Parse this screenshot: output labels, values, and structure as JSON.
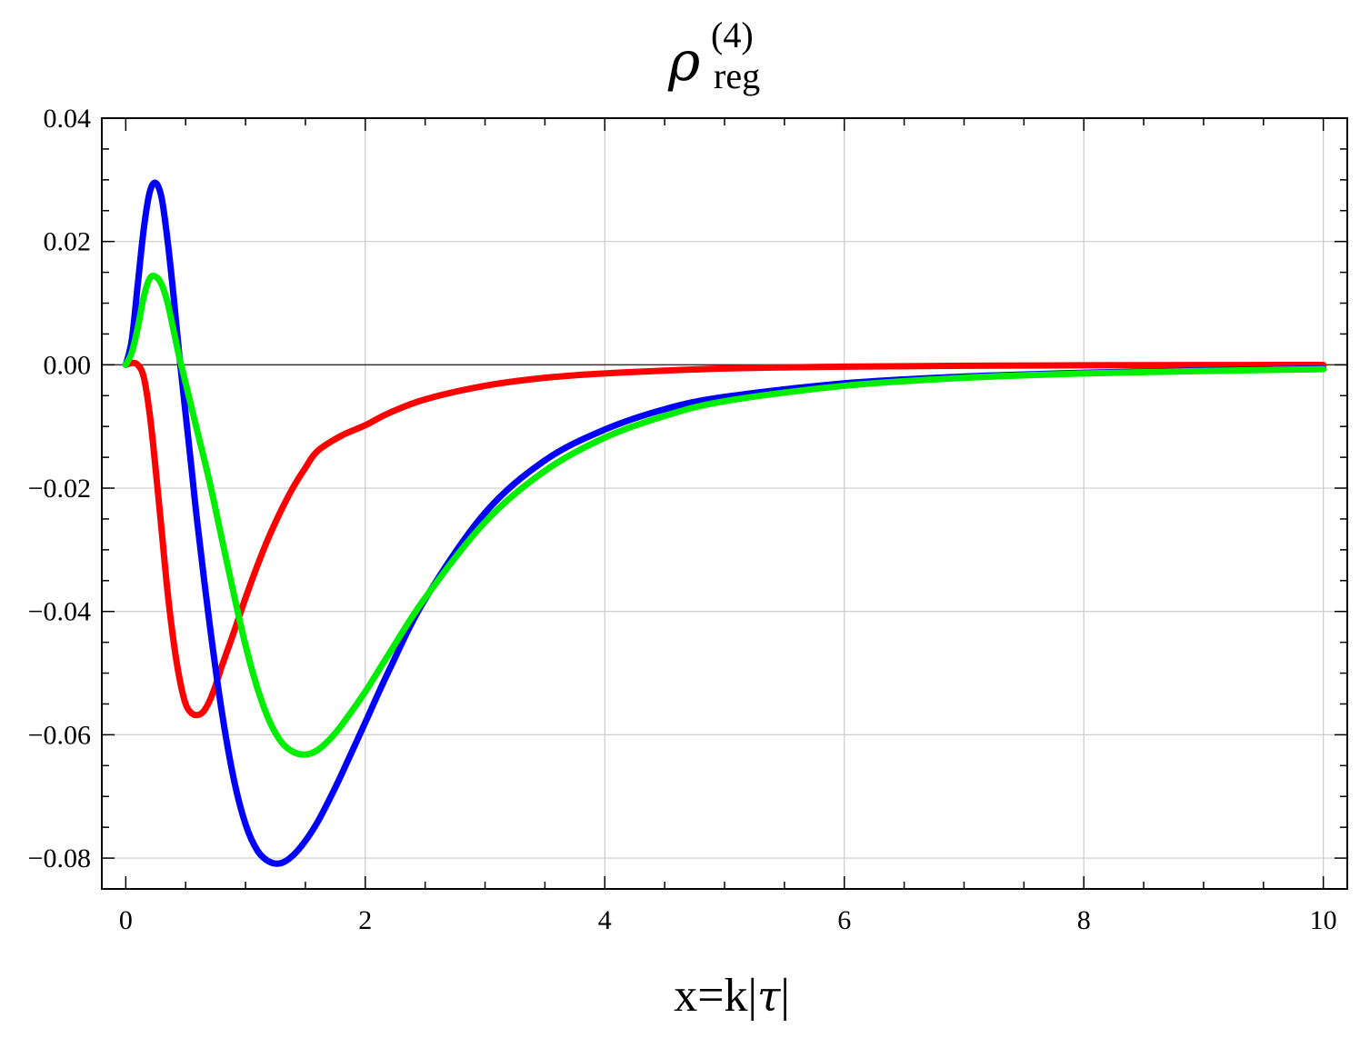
{
  "chart_data": {
    "type": "line",
    "title": {
      "base": "ρ",
      "subscript": "reg",
      "superscript": "(4)"
    },
    "xlabel": {
      "prefix": "x=k|",
      "symbol": "τ",
      "suffix": "|"
    },
    "ylabel": "",
    "xlim": [
      -0.2,
      10.2
    ],
    "ylim": [
      -0.085,
      0.04
    ],
    "x_ticks": [
      0,
      2,
      4,
      6,
      8,
      10
    ],
    "x_tick_labels": [
      "0",
      "2",
      "4",
      "6",
      "8",
      "10"
    ],
    "y_ticks": [
      0.04,
      0.02,
      0.0,
      -0.02,
      -0.04,
      -0.06,
      -0.08
    ],
    "y_tick_labels": [
      "0.04",
      "0.02",
      "0.00",
      "−0.02",
      "−0.04",
      "−0.06",
      "−0.08"
    ],
    "grid": true,
    "series": [
      {
        "color": "#ff0000",
        "x": [
          0,
          0.05,
          0.1,
          0.15,
          0.2,
          0.25,
          0.3,
          0.35,
          0.4,
          0.45,
          0.5,
          0.55,
          0.6,
          0.65,
          0.7,
          0.75,
          0.8,
          0.9,
          1.0,
          1.1,
          1.2,
          1.3,
          1.4,
          1.5,
          1.6,
          1.8,
          2.0,
          2.2,
          2.5,
          3.0,
          3.5,
          4.0,
          5.0,
          6.0,
          7.0,
          8.0,
          9.0,
          10.0
        ],
        "y": [
          0.0,
          0.0003,
          0.0,
          -0.002,
          -0.008,
          -0.017,
          -0.027,
          -0.037,
          -0.045,
          -0.051,
          -0.055,
          -0.0565,
          -0.0568,
          -0.0562,
          -0.0545,
          -0.052,
          -0.049,
          -0.0435,
          -0.0378,
          -0.0325,
          -0.0277,
          -0.0235,
          -0.0198,
          -0.0167,
          -0.014,
          -0.0115,
          -0.0098,
          -0.0078,
          -0.0056,
          -0.0034,
          -0.0021,
          -0.0014,
          -0.0006,
          -0.0003,
          -0.00015,
          -8e-05,
          -4e-05,
          -2e-05
        ]
      },
      {
        "color": "#0000ff",
        "x": [
          0,
          0.05,
          0.1,
          0.15,
          0.2,
          0.25,
          0.3,
          0.35,
          0.4,
          0.45,
          0.5,
          0.55,
          0.6,
          0.7,
          0.8,
          0.9,
          1.0,
          1.1,
          1.2,
          1.3,
          1.4,
          1.5,
          1.6,
          1.7,
          1.8,
          2.0,
          2.2,
          2.5,
          3.0,
          3.5,
          4.0,
          4.5,
          5.0,
          6.0,
          7.0,
          8.0,
          9.0,
          10.0
        ],
        "y": [
          0.0,
          0.004,
          0.013,
          0.022,
          0.028,
          0.0295,
          0.027,
          0.02,
          0.011,
          0.001,
          -0.008,
          -0.017,
          -0.026,
          -0.042,
          -0.056,
          -0.067,
          -0.0745,
          -0.0788,
          -0.0806,
          -0.0808,
          -0.0795,
          -0.0772,
          -0.0742,
          -0.0705,
          -0.0665,
          -0.058,
          -0.0495,
          -0.038,
          -0.024,
          -0.0155,
          -0.0105,
          -0.0072,
          -0.0052,
          -0.003,
          -0.0019,
          -0.0013,
          -0.0009,
          -0.0006
        ]
      },
      {
        "color": "#00ee00",
        "x": [
          0,
          0.05,
          0.1,
          0.15,
          0.2,
          0.25,
          0.3,
          0.35,
          0.4,
          0.45,
          0.5,
          0.55,
          0.6,
          0.7,
          0.8,
          0.9,
          1.0,
          1.1,
          1.2,
          1.3,
          1.4,
          1.5,
          1.6,
          1.7,
          1.8,
          2.0,
          2.2,
          2.5,
          3.0,
          3.5,
          4.0,
          4.5,
          5.0,
          6.0,
          7.0,
          8.0,
          9.0,
          10.0
        ],
        "y": [
          0.0,
          0.002,
          0.006,
          0.011,
          0.014,
          0.0143,
          0.013,
          0.01,
          0.0055,
          0.001,
          -0.003,
          -0.007,
          -0.011,
          -0.019,
          -0.028,
          -0.037,
          -0.0455,
          -0.0525,
          -0.0578,
          -0.0612,
          -0.0628,
          -0.0632,
          -0.0625,
          -0.0608,
          -0.0585,
          -0.053,
          -0.0468,
          -0.0378,
          -0.0255,
          -0.0172,
          -0.0118,
          -0.0083,
          -0.0059,
          -0.0034,
          -0.0021,
          -0.0014,
          -0.001,
          -0.0007
        ]
      }
    ]
  }
}
